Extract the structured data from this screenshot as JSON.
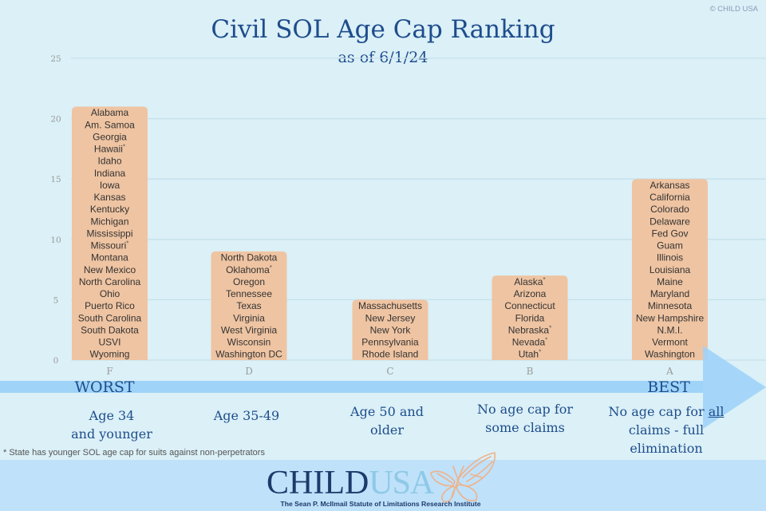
{
  "copyright": "© CHILD USA",
  "chart_data": {
    "type": "bar",
    "title": "Civil SOL Age Cap Ranking",
    "subtitle": "as of 6/1/24",
    "xlabel": "",
    "ylabel": "",
    "categories": [
      "F",
      "D",
      "C",
      "B",
      "A"
    ],
    "values": [
      21,
      9,
      5,
      7,
      15
    ],
    "ylim": [
      0,
      25
    ],
    "yticks": [
      0,
      5,
      10,
      15,
      20,
      25
    ],
    "grid": true,
    "legend": null,
    "bar_labels": [
      [
        "Alabama",
        "Am. Samoa",
        "Georgia",
        "Hawaii*",
        "Idaho",
        "Indiana",
        "Iowa",
        "Kansas",
        "Kentucky",
        "Michigan",
        "Mississippi",
        "Missouri*",
        "Montana",
        "New Mexico",
        "North Carolina",
        "Ohio",
        "Puerto Rico",
        "South Carolina",
        "South Dakota",
        "USVI",
        "Wyoming"
      ],
      [
        "North Dakota",
        "Oklahoma*",
        "Oregon",
        "Tennessee",
        "Texas",
        "Virginia",
        "West Virginia",
        "Wisconsin",
        "Washington DC"
      ],
      [
        "Massachusetts",
        "New Jersey",
        "New York",
        "Pennsylvania",
        "Rhode Island"
      ],
      [
        "Alaska*",
        "Arizona",
        "Connecticut",
        "Florida",
        "Nebraska*",
        "Nevada*",
        "Utah*"
      ],
      [
        "Arkansas",
        "California",
        "Colorado",
        "Delaware",
        "Fed Gov",
        "Guam",
        "Illinois",
        "Louisiana",
        "Maine",
        "Maryland",
        "Minnesota",
        "New Hampshire",
        "N.M.I.",
        "Vermont",
        "Washington"
      ]
    ],
    "annotations": {
      "left": "WORST",
      "right": "BEST"
    }
  },
  "descriptions": [
    {
      "grade": "F",
      "lines": [
        "Age 34",
        "and younger"
      ]
    },
    {
      "grade": "D",
      "lines": [
        "Age 35-49"
      ]
    },
    {
      "grade": "C",
      "lines": [
        "Age 50 and",
        "older"
      ]
    },
    {
      "grade": "B",
      "lines": [
        "No age cap for",
        "some claims"
      ]
    },
    {
      "grade": "A",
      "lines": [
        "No age cap for",
        "claims - full",
        "elimination"
      ],
      "emphasis": "all"
    }
  ],
  "footnote": "* State has younger SOL age cap for suits against non-perpetrators",
  "logo": {
    "child": "CHILD",
    "usa": "USA",
    "tagline": "The Sean P. McIlmail Statute of Limitations Research Institute"
  },
  "colors": {
    "background": "#dbf0f7",
    "bar": "#efc4a2",
    "title": "#1e4d8c",
    "arrow": "#9fd3f8",
    "footer": "#bfe1fa",
    "logo_dark": "#1c3a6b",
    "logo_light": "#8ec9e6",
    "butterfly": "#eeb28a"
  }
}
